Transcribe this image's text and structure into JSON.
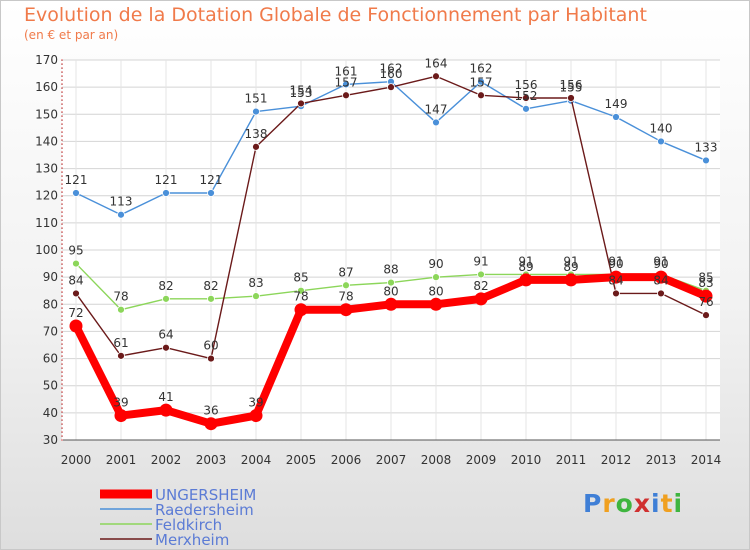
{
  "chart_data": {
    "type": "line",
    "title": "Evolution de la Dotation Globale de Fonctionnement par Habitant",
    "subtitle": "(en € et par an)",
    "xlabel": "",
    "ylabel": "",
    "ylim": [
      30,
      170
    ],
    "grid": true,
    "x": [
      "2000",
      "2001",
      "2002",
      "2003",
      "2004",
      "2005",
      "2006",
      "2007",
      "2008",
      "2009",
      "2010",
      "2011",
      "2012",
      "2013",
      "2014"
    ],
    "yticks": [
      "30",
      "40",
      "50",
      "60",
      "70",
      "80",
      "90",
      "100",
      "110",
      "120",
      "130",
      "140",
      "150",
      "160",
      "170"
    ],
    "legend_position": "bottom-left",
    "series": [
      {
        "name": "Raedersheim",
        "color": "#4a90d9",
        "values": [
          121,
          113,
          121,
          121,
          151,
          153,
          161,
          162,
          147,
          162,
          152,
          155,
          149,
          140,
          133
        ],
        "labels": [
          "121",
          "113",
          "121",
          "121",
          "151",
          "153",
          "161",
          "162",
          "147",
          "162",
          "152",
          "155",
          "149",
          "140",
          "133"
        ]
      },
      {
        "name": "Feldkirch",
        "color": "#8cd65a",
        "values": [
          95,
          78,
          82,
          82,
          83,
          85,
          87,
          88,
          90,
          91,
          91,
          91,
          91,
          91,
          85
        ],
        "labels": [
          "95",
          "78",
          "82",
          "82",
          "83",
          "85",
          "87",
          "88",
          "90",
          "91",
          "91",
          "91",
          "91",
          "91",
          "85"
        ]
      },
      {
        "name": "Merxheim",
        "color": "#6b1a1a",
        "values": [
          84,
          61,
          64,
          60,
          138,
          154,
          157,
          160,
          164,
          157,
          156,
          156,
          84,
          84,
          76
        ],
        "labels": [
          "84",
          "61",
          "64",
          "60",
          "138",
          "154",
          "157",
          "160",
          "164",
          "157",
          "156",
          "156",
          "84",
          "84",
          "76"
        ]
      },
      {
        "name": "UNGERSHEIM",
        "color": "#ff0000",
        "values": [
          72,
          39,
          41,
          36,
          39,
          78,
          78,
          80,
          80,
          82,
          89,
          89,
          90,
          90,
          83
        ],
        "labels": [
          "72",
          "39",
          "41",
          "36",
          "39",
          "78",
          "78",
          "80",
          "80",
          "82",
          "89",
          "89",
          "90",
          "90",
          "83"
        ]
      }
    ],
    "legend": [
      "UNGERSHEIM",
      "Raedersheim",
      "Feldkirch",
      "Merxheim"
    ]
  },
  "logo": {
    "text": [
      "P",
      "r",
      "o",
      "x",
      "i",
      "t",
      "i"
    ],
    "colors": [
      "#3f7fd6",
      "#f0a020",
      "#3fb53f",
      "#d03030",
      "#3f7fd6",
      "#f0a020",
      "#3fb53f"
    ]
  }
}
